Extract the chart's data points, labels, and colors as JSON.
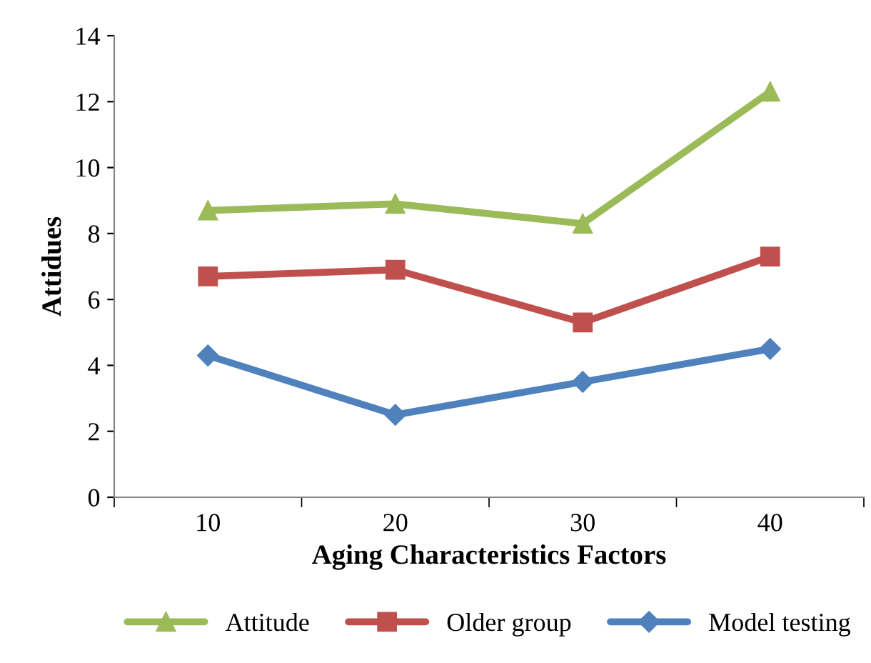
{
  "chart_data": {
    "type": "line",
    "xlabel": "Aging Characteristics Factors",
    "ylabel": "Attidues",
    "categories": [
      "10",
      "20",
      "30",
      "40"
    ],
    "series": [
      {
        "name": "Attitude",
        "color": "#9bbb59",
        "marker": "triangle",
        "values": [
          8.7,
          8.9,
          8.3,
          12.3
        ]
      },
      {
        "name": "Older group",
        "color": "#c0504d",
        "marker": "square",
        "values": [
          6.7,
          6.9,
          5.3,
          7.3
        ]
      },
      {
        "name": "Model testing",
        "color": "#4f81bd",
        "marker": "diamond",
        "values": [
          4.3,
          2.5,
          3.5,
          4.5
        ]
      }
    ],
    "ylim": [
      0,
      14
    ],
    "yticks": [
      0,
      2,
      4,
      6,
      8,
      10,
      12,
      14
    ],
    "grid": false,
    "legend": "bottom",
    "line_style": "solid"
  }
}
